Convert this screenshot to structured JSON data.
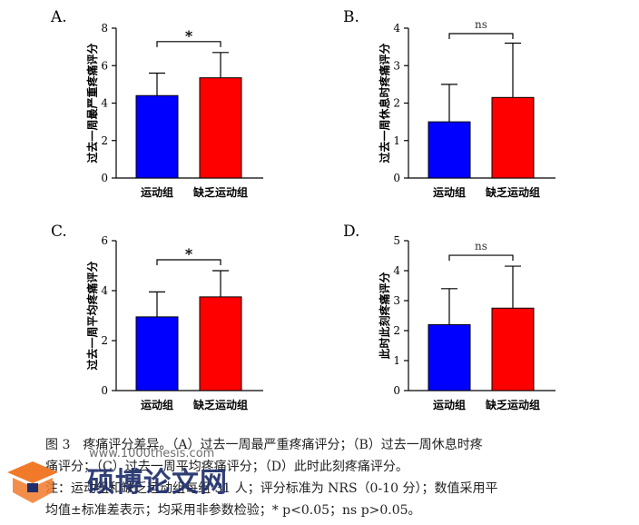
{
  "chart_data": [
    {
      "type": "bar",
      "panel": "A.",
      "ylabel": "过去一周最严重疼痛评分",
      "categories": [
        "运动组",
        "缺乏运动组"
      ],
      "values": [
        4.4,
        5.35
      ],
      "errors": [
        1.2,
        1.35
      ],
      "colors": [
        "#0000ff",
        "#ff0000"
      ],
      "ylim": [
        0,
        8
      ],
      "yticks": [
        "0",
        "2",
        "4",
        "6",
        "8"
      ],
      "significance": "*"
    },
    {
      "type": "bar",
      "panel": "B.",
      "ylabel": "过去一周休息时疼痛评分",
      "categories": [
        "运动组",
        "缺乏运动组"
      ],
      "values": [
        1.5,
        2.15
      ],
      "errors": [
        1.0,
        1.45
      ],
      "colors": [
        "#0000ff",
        "#ff0000"
      ],
      "ylim": [
        0,
        4
      ],
      "yticks": [
        "0",
        "1",
        "2",
        "3",
        "4"
      ],
      "significance": "ns"
    },
    {
      "type": "bar",
      "panel": "C.",
      "ylabel": "过去一周平均疼痛评分",
      "categories": [
        "运动组",
        "缺乏运动组"
      ],
      "values": [
        2.95,
        3.75
      ],
      "errors": [
        1.0,
        1.05
      ],
      "colors": [
        "#0000ff",
        "#ff0000"
      ],
      "ylim": [
        0,
        6
      ],
      "yticks": [
        "0",
        "2",
        "4",
        "6"
      ],
      "significance": "*"
    },
    {
      "type": "bar",
      "panel": "D.",
      "ylabel": "此时此刻疼痛评分",
      "categories": [
        "运动组",
        "缺乏运动组"
      ],
      "values": [
        2.2,
        2.75
      ],
      "errors": [
        1.2,
        1.4
      ],
      "colors": [
        "#0000ff",
        "#ff0000"
      ],
      "ylim": [
        0,
        5
      ],
      "yticks": [
        "0",
        "1",
        "2",
        "3",
        "4",
        "5"
      ],
      "significance": "ns"
    }
  ],
  "caption": {
    "lines": [
      "图 3　疼痛评分差异。（A）过去一周最严重疼痛评分；（B）过去一周休息时疼",
      "痛评分；（C）过去一周平均疼痛评分；（D）此时此刻疼痛评分。",
      "注：运动组和缺乏运动组每组 31 人；评分标准为 NRS（0-10 分）；数值采用平",
      "均值±标准差表示；均采用非参数检验；* p<0.05；ns p>0.05。"
    ]
  },
  "watermark": {
    "title": "硕博论文网",
    "url": "www.1000thesis.com",
    "colors": {
      "orange": "#f07a2a",
      "navy": "#1f2f6b"
    }
  }
}
